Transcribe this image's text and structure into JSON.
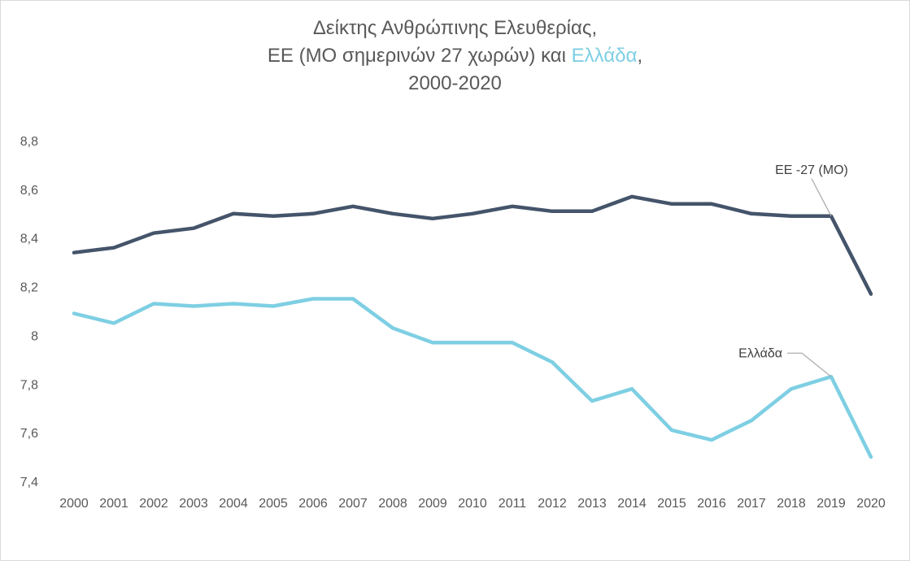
{
  "chart_data": {
    "type": "line",
    "title_line1": "Δείκτης Ανθρώπινης Ελευθερίας,",
    "title_line2_part1": "ΕΕ (ΜΟ σημερινών 27 χωρών) και ",
    "title_line2_highlight": "Ελλάδα",
    "title_line2_part2": ",",
    "title_line3": "2000-2020",
    "x": [
      "2000",
      "2001",
      "2002",
      "2003",
      "2004",
      "2005",
      "2006",
      "2007",
      "2008",
      "2009",
      "2010",
      "2011",
      "2012",
      "2013",
      "2014",
      "2015",
      "2016",
      "2017",
      "2018",
      "2019",
      "2020"
    ],
    "y_ticks": [
      "8,8",
      "8,6",
      "8,4",
      "8,2",
      "8",
      "7,8",
      "7,6",
      "7,4"
    ],
    "ylim": [
      7.4,
      8.8
    ],
    "grid": false,
    "series": [
      {
        "name": "ΕΕ -27 (ΜΟ)",
        "color": "#44546a",
        "values": [
          8.34,
          8.36,
          8.42,
          8.44,
          8.5,
          8.49,
          8.5,
          8.53,
          8.5,
          8.48,
          8.5,
          8.53,
          8.51,
          8.51,
          8.57,
          8.54,
          8.54,
          8.5,
          8.49,
          8.49,
          8.17
        ]
      },
      {
        "name": "Ελλάδα",
        "color": "#7ecfe3",
        "values": [
          8.09,
          8.05,
          8.13,
          8.12,
          8.13,
          8.12,
          8.15,
          8.15,
          8.03,
          7.97,
          7.97,
          7.97,
          7.89,
          7.73,
          7.78,
          7.61,
          7.57,
          7.65,
          7.78,
          7.83,
          7.5
        ]
      }
    ]
  }
}
